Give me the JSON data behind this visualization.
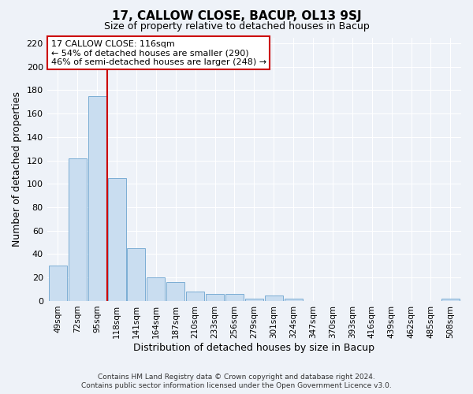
{
  "title": "17, CALLOW CLOSE, BACUP, OL13 9SJ",
  "subtitle": "Size of property relative to detached houses in Bacup",
  "xlabel": "Distribution of detached houses by size in Bacup",
  "ylabel": "Number of detached properties",
  "footer_line1": "Contains HM Land Registry data © Crown copyright and database right 2024.",
  "footer_line2": "Contains public sector information licensed under the Open Government Licence v3.0.",
  "bin_labels": [
    "49sqm",
    "72sqm",
    "95sqm",
    "118sqm",
    "141sqm",
    "164sqm",
    "187sqm",
    "210sqm",
    "233sqm",
    "256sqm",
    "279sqm",
    "301sqm",
    "324sqm",
    "347sqm",
    "370sqm",
    "393sqm",
    "416sqm",
    "439sqm",
    "462sqm",
    "485sqm",
    "508sqm"
  ],
  "bar_values": [
    30,
    122,
    175,
    105,
    45,
    20,
    16,
    8,
    6,
    6,
    2,
    5,
    2,
    0,
    0,
    0,
    0,
    0,
    0,
    0,
    2
  ],
  "bar_color": "#c9ddf0",
  "bar_edge_color": "#7aadd4",
  "annotation_title": "17 CALLOW CLOSE: 116sqm",
  "annotation_line1": "← 54% of detached houses are smaller (290)",
  "annotation_line2": "46% of semi-detached houses are larger (248) →",
  "annotation_box_color": "#ffffff",
  "annotation_box_edge_color": "#cc0000",
  "vline_color": "#cc0000",
  "ylim": [
    0,
    225
  ],
  "yticks": [
    0,
    20,
    40,
    60,
    80,
    100,
    120,
    140,
    160,
    180,
    200,
    220
  ],
  "bg_color": "#eef2f8",
  "grid_color": "#ffffff",
  "figsize": [
    6.0,
    5.0
  ],
  "dpi": 100
}
